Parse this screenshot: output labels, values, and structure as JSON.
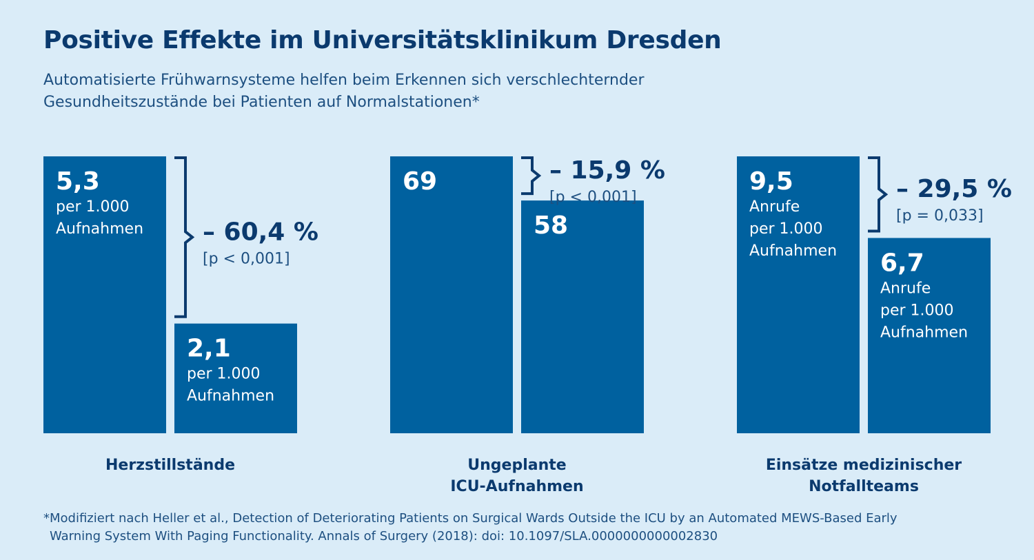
{
  "header": {
    "title": "Positive Effekte im Universitätsklinikum Dresden",
    "subtitle_line1": "Automatisierte Frühwarnsysteme helfen beim Erkennen sich verschlechternder",
    "subtitle_line2": "Gesundheitszustände bei Patienten auf Normalstationen*"
  },
  "footnote": {
    "line1": "*Modifiziert nach Heller et al., Detection of Deteriorating Patients on Surgical Wards Outside the ICU by an Automated MEWS-Based Early",
    "line2": "Warning System With Paging Functionality. Annals of Surgery (2018): doi: 10.1097/SLA.0000000000002830"
  },
  "colors": {
    "bar": "#00619f",
    "text_dark": "#0b3a6e",
    "background": "#daecf8"
  },
  "chart_data": [
    {
      "type": "bar",
      "category_lines": [
        "Herzstillstände"
      ],
      "before": {
        "value": 5.3,
        "value_label": "5,3",
        "unit_lines": [
          "per 1.000",
          "Aufnahmen"
        ]
      },
      "after": {
        "value": 2.1,
        "value_label": "2,1",
        "unit_lines": [
          "per 1.000",
          "Aufnahmen"
        ]
      },
      "change": "– 60,4 %",
      "p_value": "[p < 0,001]"
    },
    {
      "type": "bar",
      "category_lines": [
        "Ungeplante",
        "ICU-Aufnahmen"
      ],
      "before": {
        "value": 69,
        "value_label": "69",
        "unit_lines": []
      },
      "after": {
        "value": 58,
        "value_label": "58",
        "unit_lines": []
      },
      "change": "– 15,9 %",
      "p_value": "[p < 0,001]"
    },
    {
      "type": "bar",
      "category_lines": [
        "Einsätze medizinischer",
        "Notfallteams"
      ],
      "before": {
        "value": 9.5,
        "value_label": "9,5",
        "unit_lines": [
          "Anrufe",
          "per 1.000",
          "Aufnahmen"
        ]
      },
      "after": {
        "value": 6.7,
        "value_label": "6,7",
        "unit_lines": [
          "Anrufe",
          "per 1.000",
          "Aufnahmen"
        ]
      },
      "change": "– 29,5 %",
      "p_value": "[p = 0,033]"
    }
  ]
}
